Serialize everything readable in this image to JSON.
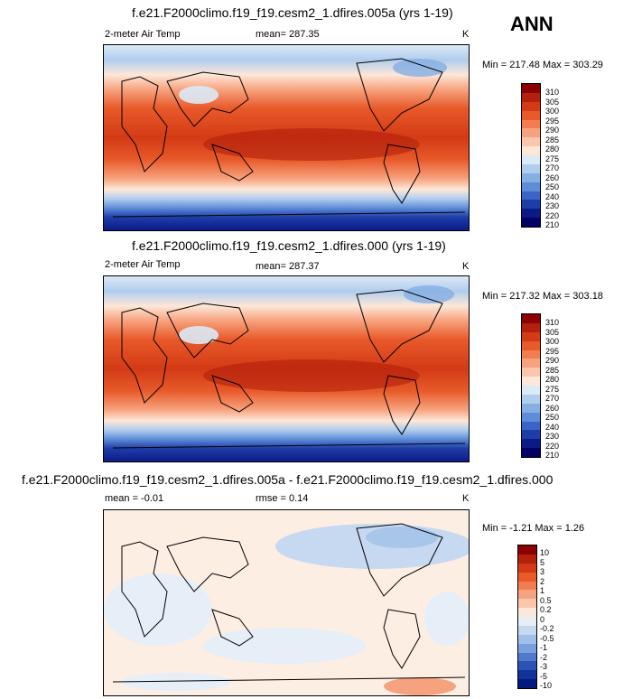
{
  "season": "ANN",
  "panels": [
    {
      "title": "f.e21.F2000climo.f19_f19.cesm2_1.dfires.005a (yrs 1-19)",
      "left_label": "2-meter Air Temp",
      "center_label": "mean= 287.35",
      "units": "K",
      "minmax": "Min = 217.48 Max = 303.29",
      "colorbar_levels": [
        "310",
        "305",
        "300",
        "295",
        "290",
        "285",
        "280",
        "275",
        "270",
        "260",
        "250",
        "240",
        "230",
        "220",
        "210"
      ]
    },
    {
      "title": "f.e21.F2000climo.f19_f19.cesm2_1.dfires.000 (yrs 1-19)",
      "left_label": "2-meter Air Temp",
      "center_label": "mean= 287.37",
      "units": "K",
      "minmax": "Min = 217.32 Max = 303.18",
      "colorbar_levels": [
        "310",
        "305",
        "300",
        "295",
        "290",
        "285",
        "280",
        "275",
        "270",
        "260",
        "250",
        "240",
        "230",
        "220",
        "210"
      ]
    },
    {
      "title": "f.e21.F2000climo.f19_f19.cesm2_1.dfires.005a - f.e21.F2000climo.f19_f19.cesm2_1.dfires.000",
      "left_label": "mean =  -0.01",
      "center_label": "rmse =  0.14",
      "units": "K",
      "minmax": "Min =  -1.21 Max =   1.26",
      "colorbar_levels": [
        "10",
        "5",
        "3",
        "2",
        "1",
        "0.5",
        "0.2",
        "0",
        "-0.2",
        "-0.5",
        "-1",
        "-2",
        "-3",
        "-5",
        "-10"
      ]
    }
  ],
  "colors": {
    "abs_scale": [
      "#8b0000",
      "#b3200c",
      "#d33a15",
      "#e85a2a",
      "#f27d4f",
      "#f7a27e",
      "#fbc6ab",
      "#fde7d8",
      "#dce9f6",
      "#b0cdee",
      "#85aee3",
      "#5d8cd8",
      "#3a64c6",
      "#1f3da9",
      "#0c1a86",
      "#000066"
    ],
    "diff_scale": [
      "#8b0000",
      "#b3200c",
      "#d33a15",
      "#e85a2a",
      "#f27d4f",
      "#f7a27e",
      "#fbc6ab",
      "#fde7d8",
      "#e6eef8",
      "#c7d9f0",
      "#9fc0e8",
      "#7aa1de",
      "#4f79cb",
      "#2c52b4",
      "#13339a",
      "#021a7e"
    ]
  }
}
